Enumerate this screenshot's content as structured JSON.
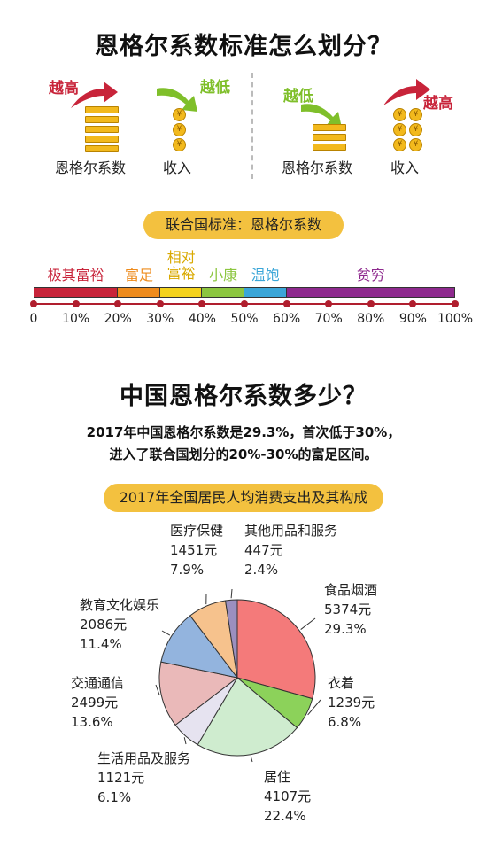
{
  "title1": "恩格尔系数标准怎么划分？",
  "illustration": {
    "left": {
      "arrow1_text": "越高",
      "arrow2_text": "越低",
      "label1": "恩格尔系数",
      "label2": "收入"
    },
    "right": {
      "arrow1_text": "越低",
      "arrow2_text": "越高",
      "label1": "恩格尔系数",
      "label2": "收入"
    },
    "colors": {
      "high": "#c8243a",
      "low": "#7fbf2a",
      "coin": "#f2b91d"
    }
  },
  "un_standard": {
    "pill": "联合国标准：恩格尔系数",
    "categories": [
      {
        "label": "极其富裕",
        "from": 0,
        "to": 20,
        "color": "#c8243a"
      },
      {
        "label": "富足",
        "from": 20,
        "to": 30,
        "color": "#ee8b1c"
      },
      {
        "label": "相对\n富裕",
        "from": 30,
        "to": 40,
        "color": "#f4d21c"
      },
      {
        "label": "小康",
        "from": 40,
        "to": 50,
        "color": "#8cc63f"
      },
      {
        "label": "温饱",
        "from": 50,
        "to": 60,
        "color": "#3aa6d8"
      },
      {
        "label": "贫穷",
        "from": 60,
        "to": 100,
        "color": "#8e2a8e"
      }
    ],
    "ticks": [
      "0",
      "10%",
      "20%",
      "30%",
      "40%",
      "50%",
      "60%",
      "70%",
      "80%",
      "90%",
      "100%"
    ]
  },
  "title2": "中国恩格尔系数多少？",
  "summary": {
    "line1": "2017年中国恩格尔系数是29.3%，首次低于30%，",
    "line2": "进入了联合国划分的20%-30%的富足区间。"
  },
  "chart_data": {
    "type": "pie",
    "title": "2017年全国居民人均消费支出及其构成",
    "slices": [
      {
        "name": "食品烟酒",
        "value": 5374,
        "value_text": "5374元",
        "percent": 29.3,
        "percent_text": "29.3%",
        "color": "#f47a7a"
      },
      {
        "name": "衣着",
        "value": 1239,
        "value_text": "1239元",
        "percent": 6.8,
        "percent_text": "6.8%",
        "color": "#8cd25a"
      },
      {
        "name": "居住",
        "value": 4107,
        "value_text": "4107元",
        "percent": 22.4,
        "percent_text": "22.4%",
        "color": "#cfeccf"
      },
      {
        "name": "生活用品及服务",
        "value": 1121,
        "value_text": "1121元",
        "percent": 6.1,
        "percent_text": "6.1%",
        "color": "#e6e3f0"
      },
      {
        "name": "交通通信",
        "value": 2499,
        "value_text": "2499元",
        "percent": 13.6,
        "percent_text": "13.6%",
        "color": "#eab9b9"
      },
      {
        "name": "教育文化娱乐",
        "value": 2086,
        "value_text": "2086元",
        "percent": 11.4,
        "percent_text": "11.4%",
        "color": "#93b4de"
      },
      {
        "name": "医疗保健",
        "value": 1451,
        "value_text": "1451元",
        "percent": 7.9,
        "percent_text": "7.9%",
        "color": "#f6c28d"
      },
      {
        "name": "其他用品和服务",
        "value": 447,
        "value_text": "447元",
        "percent": 2.4,
        "percent_text": "2.4%",
        "color": "#9b8fbf"
      }
    ]
  }
}
